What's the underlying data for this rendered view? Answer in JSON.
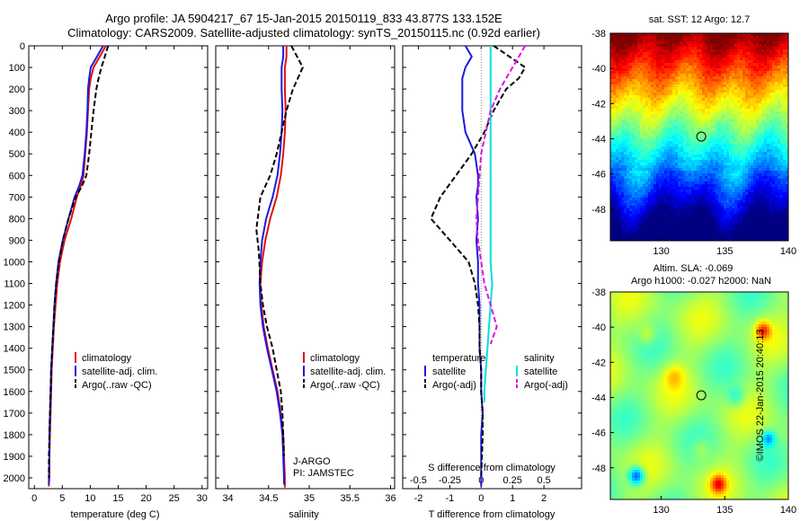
{
  "header": {
    "title_line1": "Argo profile: JA 5904217_67 15-Jan-2015 20150119_833 43.877S 133.152E",
    "title_line2": "Climatology: CARS2009. Satellite-adjusted climatology: synTS_20150115.nc (0.92d earlier)"
  },
  "credit": "©IMOS 22-Jan-2015 20:40:13",
  "colors": {
    "climatology": "#e01010",
    "satellite": "#1a1ae0",
    "argo": "#000000",
    "sal_satellite": "#00e0e0",
    "sal_argo": "#e010e0",
    "zero_line": "#888888"
  },
  "chart_data": [
    {
      "id": "temperature",
      "type": "line",
      "xlabel": "temperature (deg C)",
      "xlim": [
        -1,
        31
      ],
      "ylim": [
        2050,
        0
      ],
      "xticks": [
        0,
        5,
        10,
        15,
        20,
        25,
        30
      ],
      "yticks": [
        0,
        100,
        200,
        300,
        400,
        500,
        600,
        700,
        800,
        900,
        1000,
        1100,
        1200,
        1300,
        1400,
        1500,
        1600,
        1700,
        1800,
        1900,
        2000
      ],
      "legend": [
        "climatology",
        "satellite-adj. clim.",
        "Argo(..raw -QC)"
      ],
      "series": [
        {
          "name": "climatology",
          "style": "solid",
          "color_key": "climatology",
          "x": [
            12.8,
            11.7,
            10.6,
            10.1,
            9.8,
            9.6,
            9.4,
            9.1,
            8.8,
            8.3,
            7.6,
            6.6,
            5.4,
            4.6,
            4.1,
            3.8,
            3.5,
            3.3,
            3.1,
            3.0,
            2.9,
            2.8,
            2.7,
            2.7,
            2.6,
            2.6
          ],
          "y": [
            0,
            50,
            100,
            150,
            200,
            300,
            400,
            500,
            600,
            650,
            700,
            800,
            900,
            1000,
            1100,
            1200,
            1300,
            1400,
            1500,
            1600,
            1700,
            1800,
            1900,
            2000,
            2025,
            2040
          ]
        },
        {
          "name": "satellite-adj. clim.",
          "style": "solid",
          "color_key": "satellite",
          "x": [
            12.3,
            11.2,
            10.1,
            9.8,
            9.6,
            9.5,
            9.3,
            9.0,
            8.6,
            8.0,
            7.2,
            6.1,
            5.1,
            4.3,
            3.9,
            3.6,
            3.4,
            3.2,
            3.0,
            2.9,
            2.8,
            2.7,
            2.7,
            2.6,
            2.6
          ],
          "y": [
            0,
            50,
            100,
            150,
            200,
            300,
            400,
            500,
            600,
            650,
            700,
            800,
            900,
            1000,
            1100,
            1200,
            1300,
            1400,
            1500,
            1600,
            1700,
            1800,
            1900,
            2000,
            2030
          ]
        },
        {
          "name": "Argo(..raw -QC)",
          "style": "dashed",
          "color_key": "argo",
          "x": [
            13.2,
            12.6,
            12.0,
            11.5,
            11.1,
            10.6,
            10.2,
            9.8,
            9.3,
            8.5,
            7.4,
            6.1,
            5.1,
            4.4,
            3.9,
            3.6,
            3.4,
            3.2,
            3.0,
            2.9,
            2.8,
            2.7,
            2.6,
            2.6
          ],
          "y": [
            0,
            50,
            100,
            150,
            200,
            300,
            400,
            500,
            600,
            650,
            700,
            800,
            900,
            1000,
            1100,
            1200,
            1300,
            1400,
            1500,
            1600,
            1700,
            1800,
            1900,
            2000
          ]
        }
      ]
    },
    {
      "id": "salinity",
      "type": "line",
      "xlabel": "salinity",
      "xlim": [
        33.85,
        36.05
      ],
      "ylim": [
        2050,
        0
      ],
      "xticks": [
        34,
        34.5,
        35,
        35.5,
        36
      ],
      "legend": [
        "climatology",
        "satellite-adj. clim.",
        "Argo(..raw -QC)"
      ],
      "annotation": [
        "J-ARGO",
        "PI: JAMSTEC"
      ],
      "series": [
        {
          "name": "climatology",
          "style": "solid",
          "color_key": "climatology",
          "x": [
            34.72,
            34.72,
            34.7,
            34.7,
            34.71,
            34.7,
            34.68,
            34.65,
            34.6,
            34.52,
            34.46,
            34.42,
            34.4,
            34.41,
            34.44,
            34.49,
            34.55,
            34.61,
            34.65,
            34.68,
            34.69,
            34.7,
            34.7,
            34.7
          ],
          "y": [
            0,
            50,
            100,
            200,
            300,
            400,
            500,
            600,
            700,
            800,
            900,
            1000,
            1100,
            1200,
            1300,
            1400,
            1500,
            1600,
            1700,
            1800,
            1900,
            2000,
            2030,
            2045
          ]
        },
        {
          "name": "satellite-adj. clim.",
          "style": "solid",
          "color_key": "satellite",
          "x": [
            34.68,
            34.68,
            34.66,
            34.66,
            34.67,
            34.66,
            34.64,
            34.61,
            34.55,
            34.47,
            34.42,
            34.4,
            34.39,
            34.4,
            34.43,
            34.48,
            34.54,
            34.6,
            34.64,
            34.67,
            34.68,
            34.69,
            34.69
          ],
          "y": [
            0,
            50,
            100,
            200,
            300,
            400,
            500,
            600,
            700,
            800,
            900,
            1000,
            1100,
            1200,
            1300,
            1400,
            1500,
            1600,
            1700,
            1800,
            1900,
            2000,
            2030
          ]
        },
        {
          "name": "Argo(..raw -QC)",
          "style": "dashed",
          "color_key": "argo",
          "x": [
            34.78,
            34.85,
            34.92,
            34.86,
            34.8,
            34.72,
            34.66,
            34.6,
            34.52,
            34.4,
            34.35,
            34.38,
            34.4,
            34.43,
            34.48,
            34.55,
            34.6,
            34.65,
            34.67,
            34.68,
            34.69
          ],
          "y": [
            0,
            50,
            100,
            150,
            200,
            300,
            400,
            500,
            600,
            700,
            850,
            950,
            1100,
            1200,
            1300,
            1400,
            1500,
            1600,
            1700,
            1800,
            1900
          ]
        }
      ]
    },
    {
      "id": "difference",
      "type": "line",
      "xlabel": "T difference from climatology",
      "x2label": "S difference from climatology",
      "xlim": [
        -2.5,
        3.2
      ],
      "ylim": [
        2050,
        0
      ],
      "xticks": [
        -2,
        -1,
        0,
        1,
        2
      ],
      "x2ticks": [
        "-0.5",
        "-0.25",
        "0",
        "0.25",
        "0.5"
      ],
      "x2tick_positions": [
        -2,
        -1,
        0,
        1,
        2
      ],
      "legend_temperature": {
        "header": "temperature",
        "entries": [
          "satellite",
          "Argo(-adj)"
        ]
      },
      "legend_salinity": {
        "header": "salinity",
        "entries": [
          "satellite",
          "Argo(-adj)"
        ]
      },
      "series": [
        {
          "name": "temperature satellite",
          "style": "solid",
          "color_key": "satellite",
          "x": [
            -0.5,
            -0.3,
            -0.5,
            -0.6,
            -0.6,
            -0.5,
            -0.2,
            -0.1,
            -0.1,
            -0.15,
            -0.1,
            -0.15,
            -0.1,
            -0.1,
            -0.05,
            -0.05,
            -0.05,
            0,
            0,
            0.05,
            0,
            0,
            0
          ],
          "y": [
            0,
            50,
            100,
            150,
            300,
            400,
            500,
            600,
            650,
            700,
            800,
            900,
            1000,
            1100,
            1200,
            1300,
            1400,
            1500,
            1600,
            1700,
            1800,
            1900,
            2040
          ]
        },
        {
          "name": "temperature Argo(-adj)",
          "style": "dashed",
          "color_key": "argo",
          "x": [
            0.4,
            0.9,
            1.4,
            1.2,
            0.8,
            0.4,
            0.1,
            -0.3,
            -1.3,
            -1.6,
            -1.0,
            -0.4,
            -0.2,
            -0.1,
            -0.05,
            -0.05,
            0,
            0,
            0.05,
            0.05,
            0
          ],
          "y": [
            0,
            50,
            100,
            150,
            200,
            300,
            400,
            500,
            700,
            800,
            900,
            1000,
            1100,
            1200,
            1300,
            1400,
            1500,
            1600,
            1700,
            1800,
            2000
          ]
        },
        {
          "name": "salinity satellite",
          "style": "solid",
          "color_key": "sal_satellite",
          "x": [
            0.3,
            0.3,
            0.3,
            0.3,
            0.3,
            0.3,
            0.3,
            0.3,
            0.3,
            0.3,
            0.35,
            0.3,
            0.25,
            0.2,
            0.15,
            0.1,
            0.1
          ],
          "y": [
            0,
            100,
            200,
            300,
            400,
            500,
            700,
            800,
            900,
            1000,
            1100,
            1200,
            1300,
            1400,
            1500,
            1600,
            1650
          ]
        },
        {
          "name": "salinity Argo(-adj)",
          "style": "dashed",
          "color_key": "sal_argo",
          "x": [
            1.4,
            1.2,
            1.0,
            0.6,
            0.3,
            0.15,
            0,
            -0.05,
            -0.1,
            -0.15,
            -0.1,
            0,
            0.1,
            0.3,
            0.5,
            0.3
          ],
          "y": [
            0,
            50,
            100,
            200,
            300,
            400,
            500,
            600,
            700,
            800,
            900,
            1000,
            1100,
            1200,
            1300,
            1380
          ]
        }
      ]
    },
    {
      "id": "sst_map",
      "type": "heatmap",
      "title": "sat. SST: 12 Argo: 12.7",
      "xlim": [
        126,
        140
      ],
      "ylim": [
        -49.8,
        -38
      ],
      "xticks": [
        130,
        135,
        140
      ],
      "yticks": [
        -38,
        -40,
        -42,
        -44,
        -46,
        -48
      ],
      "marker": {
        "lon": 133.152,
        "lat": -43.877
      }
    },
    {
      "id": "sla_map",
      "type": "heatmap",
      "title_line1": "Altim. SLA: -0.069",
      "title_line2": "Argo h1000: -0.027 h2000: NaN",
      "xlim": [
        126,
        140
      ],
      "ylim": [
        -49.8,
        -38
      ],
      "xticks": [
        130,
        135,
        140
      ],
      "yticks": [
        -38,
        -40,
        -42,
        -44,
        -46,
        -48
      ],
      "marker": {
        "lon": 133.152,
        "lat": -43.877
      }
    }
  ]
}
